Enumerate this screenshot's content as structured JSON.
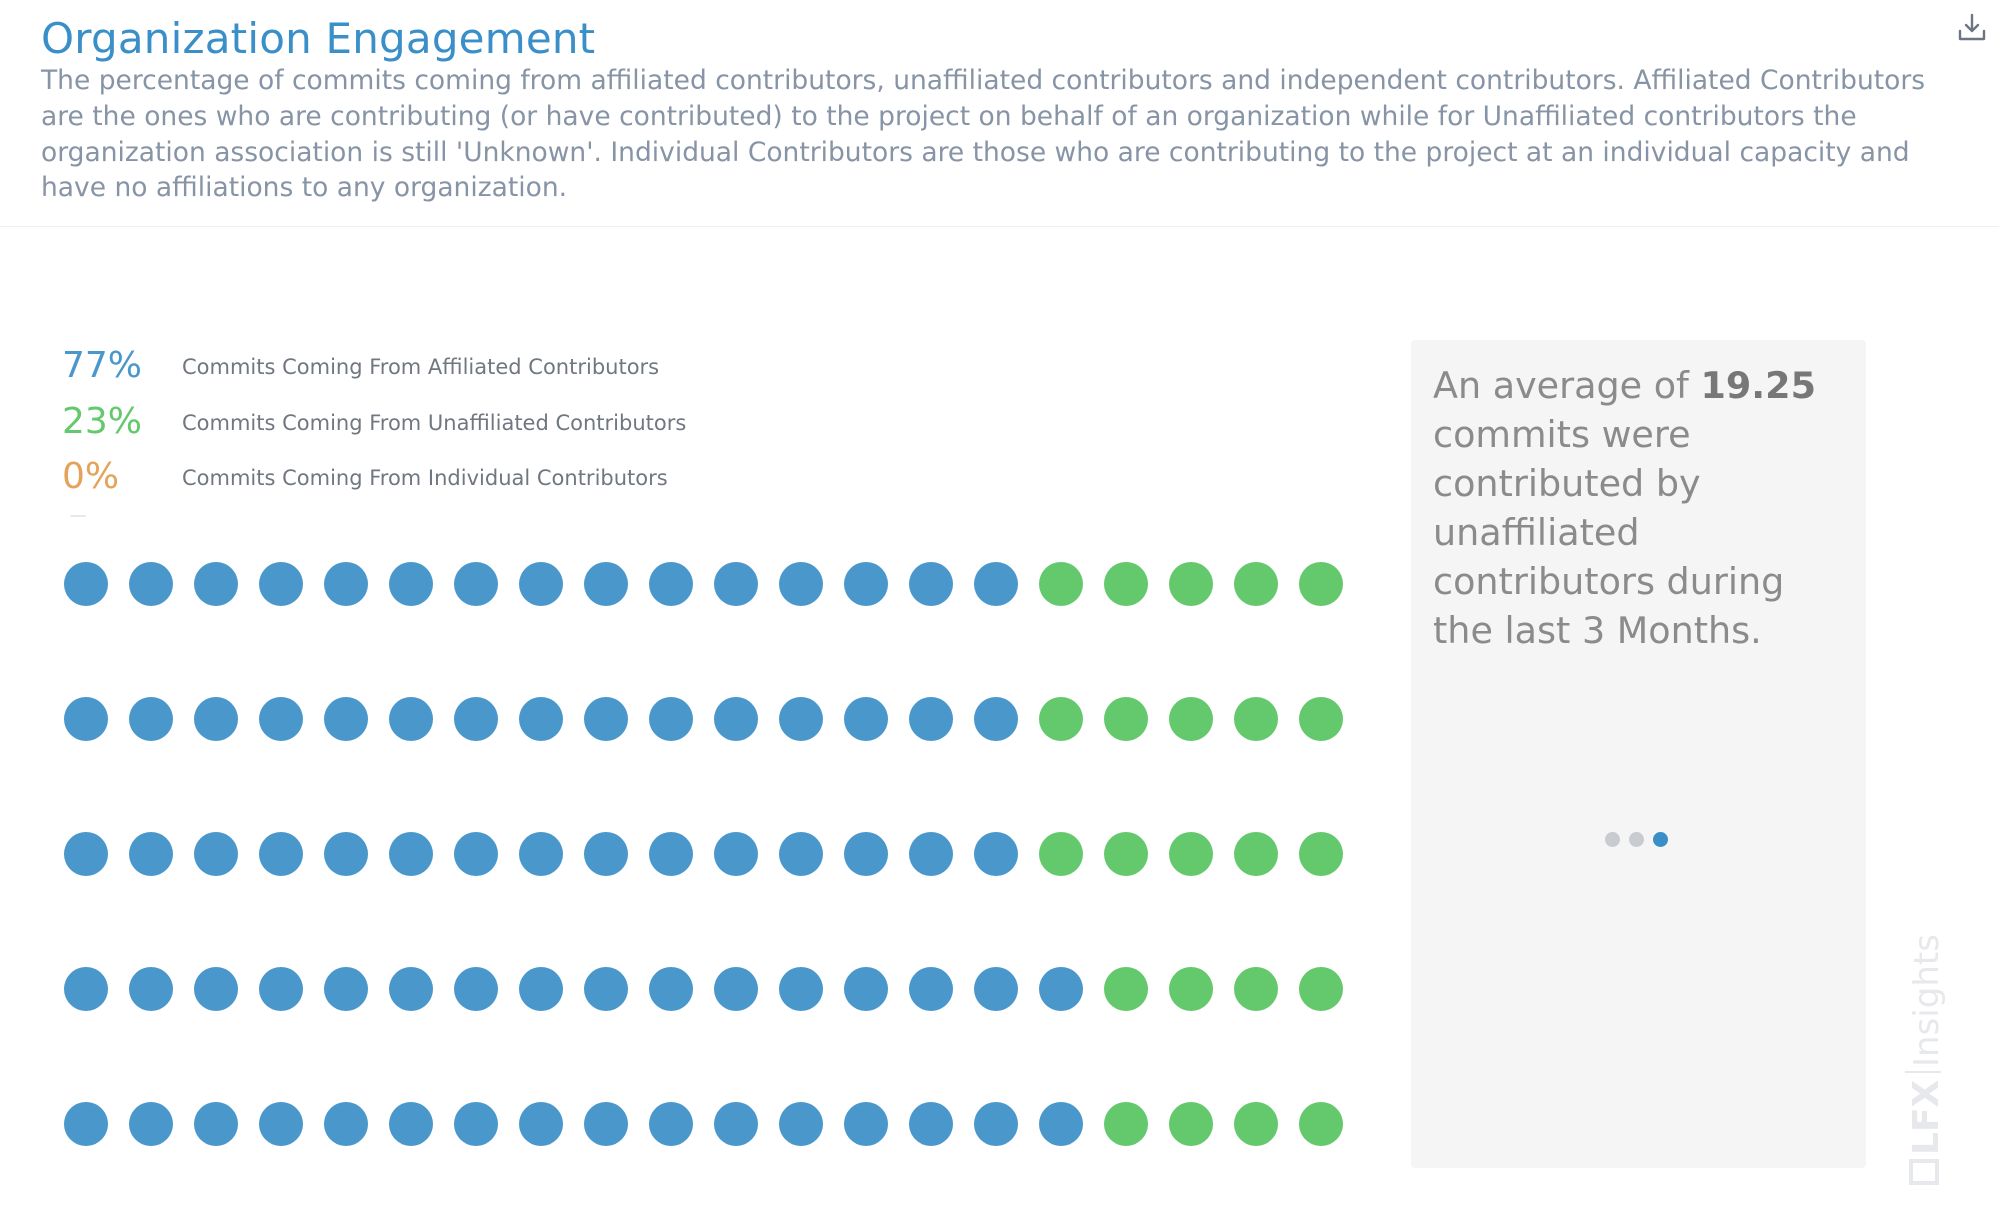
{
  "header": {
    "title": "Organization Engagement",
    "description": "The percentage of commits coming from affiliated contributors, unaffiliated contributors and independent contributors. Affiliated Contributors are the ones who are contributing (or have contributed) to the project on behalf of an organization while for Unaffiliated contributors the organization association is still 'Unknown'. Individual Contributors are those who are contributing to the project at an individual capacity and have no affiliations to any organization.",
    "download_icon": "download-icon"
  },
  "legend": {
    "items": [
      {
        "percent": "77%",
        "label": "Commits Coming From Affiliated Contributors",
        "color": "#4a97cb"
      },
      {
        "percent": "23%",
        "label": "Commits Coming From Unaffiliated Contributors",
        "color": "#63c96c"
      },
      {
        "percent": "0%",
        "label": "Commits Coming From Individual Contributors",
        "color": "#e5a35a"
      }
    ]
  },
  "chart_data": {
    "type": "waffle",
    "rows": 5,
    "columns": 20,
    "series": [
      {
        "name": "Commits Coming From Affiliated Contributors",
        "percent": 77,
        "color": "#4a97cb"
      },
      {
        "name": "Commits Coming From Unaffiliated Contributors",
        "percent": 23,
        "color": "#63c96c"
      },
      {
        "name": "Commits Coming From Individual Contributors",
        "percent": 0,
        "color": "#e5a35a"
      }
    ],
    "affiliated_per_row": [
      15,
      15,
      15,
      16,
      16
    ]
  },
  "summary": {
    "prefix": "An average of ",
    "value": "19.25",
    "suffix": " commits were contributed by unaffiliated contributors during the last 3 Months.",
    "carousel": {
      "count": 3,
      "active_index": 2
    },
    "carousel_colors": {
      "inactive": "#c8cbd0",
      "active": "#3b8fc8"
    }
  },
  "brand": {
    "logo_letters": "LFX",
    "product": "Insights"
  }
}
